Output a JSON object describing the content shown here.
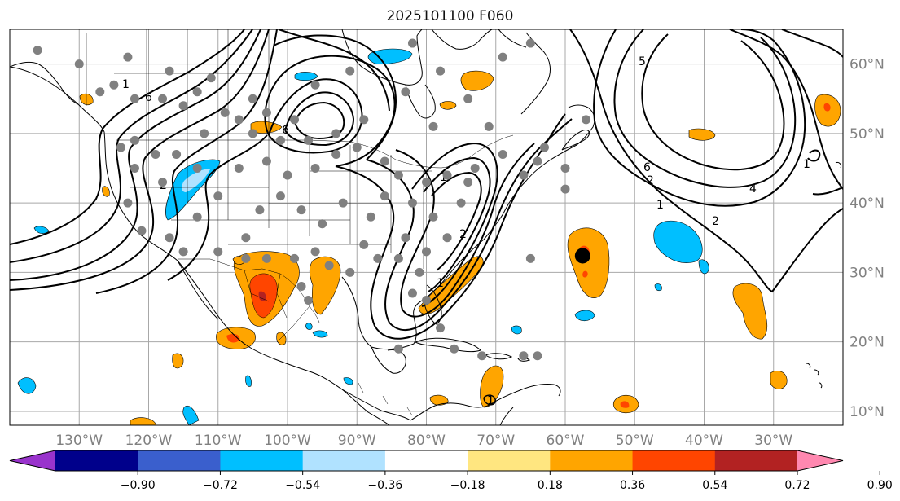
{
  "title": "2025101100 F060",
  "map": {
    "lon_range": [
      -140,
      -20
    ],
    "lat_range": [
      8,
      65
    ],
    "lon_ticks": [
      {
        "value": -130,
        "label": "130°W"
      },
      {
        "value": -120,
        "label": "120°W"
      },
      {
        "value": -110,
        "label": "110°W"
      },
      {
        "value": -100,
        "label": "100°W"
      },
      {
        "value": -90,
        "label": "90°W"
      },
      {
        "value": -80,
        "label": "80°W"
      },
      {
        "value": -70,
        "label": "70°W"
      },
      {
        "value": -60,
        "label": "60°W"
      },
      {
        "value": -50,
        "label": "50°W"
      },
      {
        "value": -40,
        "label": "40°W"
      },
      {
        "value": -30,
        "label": "30°W"
      }
    ],
    "lat_ticks": [
      {
        "value": 10,
        "label": "10°N"
      },
      {
        "value": 20,
        "label": "20°N"
      },
      {
        "value": 30,
        "label": "30°N"
      },
      {
        "value": 40,
        "label": "40°N"
      },
      {
        "value": 50,
        "label": "50°N"
      },
      {
        "value": 60,
        "label": "60°N"
      }
    ],
    "grid": true,
    "contour_labels": [
      "1",
      "6",
      "6",
      "1",
      "2",
      "1",
      "2",
      "5",
      "6",
      "1",
      "2",
      "4",
      "2",
      "1",
      "1"
    ],
    "station_points_gray": [
      [
        -123,
        61
      ],
      [
        -130,
        60
      ],
      [
        -136,
        62
      ],
      [
        -127,
        56
      ],
      [
        -125,
        57
      ],
      [
        -122,
        55
      ],
      [
        -118,
        55
      ],
      [
        -115,
        54
      ],
      [
        -117,
        59
      ],
      [
        -111,
        58
      ],
      [
        -113,
        56
      ],
      [
        -109,
        53
      ],
      [
        -105,
        55
      ],
      [
        -103,
        53
      ],
      [
        -99,
        52
      ],
      [
        -96,
        57
      ],
      [
        -93,
        50
      ],
      [
        -97,
        49
      ],
      [
        -101,
        49
      ],
      [
        -105,
        50
      ],
      [
        -107,
        52
      ],
      [
        -112,
        50
      ],
      [
        -116,
        47
      ],
      [
        -119,
        47
      ],
      [
        -122,
        49
      ],
      [
        -124,
        48
      ],
      [
        -122,
        45
      ],
      [
        -118,
        43
      ],
      [
        -113,
        45
      ],
      [
        -110,
        41
      ],
      [
        -107,
        45
      ],
      [
        -103,
        46
      ],
      [
        -100,
        44
      ],
      [
        -96,
        45
      ],
      [
        -93,
        47
      ],
      [
        -90,
        48
      ],
      [
        -86,
        46
      ],
      [
        -84,
        44
      ],
      [
        -80,
        43
      ],
      [
        -77,
        44
      ],
      [
        -73,
        45
      ],
      [
        -69,
        47
      ],
      [
        -66,
        44
      ],
      [
        -64,
        46
      ],
      [
        -60,
        45
      ],
      [
        -71,
        51
      ],
      [
        -79,
        51
      ],
      [
        -89,
        52
      ],
      [
        -83,
        56
      ],
      [
        -78,
        59
      ],
      [
        -69,
        61
      ],
      [
        -65,
        63
      ],
      [
        -74,
        55
      ],
      [
        -91,
        59
      ],
      [
        -82,
        63
      ],
      [
        -123,
        40
      ],
      [
        -121,
        36
      ],
      [
        -117,
        35
      ],
      [
        -113,
        38
      ],
      [
        -110,
        33
      ],
      [
        -106,
        35
      ],
      [
        -104,
        39
      ],
      [
        -101,
        41
      ],
      [
        -98,
        39
      ],
      [
        -95,
        37
      ],
      [
        -92,
        40
      ],
      [
        -88,
        38
      ],
      [
        -86,
        41
      ],
      [
        -82,
        40
      ],
      [
        -79,
        38
      ],
      [
        -75,
        40
      ],
      [
        -74,
        43
      ],
      [
        -96,
        33
      ],
      [
        -99,
        32
      ],
      [
        -103,
        32
      ],
      [
        -106,
        32
      ],
      [
        -91,
        30
      ],
      [
        -87,
        32
      ],
      [
        -84,
        32
      ],
      [
        -81,
        30
      ],
      [
        -82,
        27
      ],
      [
        -80,
        26
      ],
      [
        -98,
        28
      ],
      [
        -97,
        26
      ],
      [
        -89,
        34
      ],
      [
        -83,
        35
      ],
      [
        -80,
        33
      ],
      [
        -77,
        35
      ],
      [
        -60,
        42
      ],
      [
        -63,
        48
      ],
      [
        -57,
        52
      ],
      [
        -65,
        32
      ],
      [
        -76,
        19
      ],
      [
        -72,
        18
      ],
      [
        -64,
        18
      ],
      [
        -66,
        18
      ],
      [
        -84,
        19
      ],
      [
        -78,
        22
      ],
      [
        -115,
        33
      ],
      [
        -94,
        31
      ]
    ],
    "marker_black": [
      -57.5,
      32.4
    ]
  },
  "colorbar": {
    "colors": [
      "#9933cc",
      "#00008b",
      "#3a5fcd",
      "#00bfff",
      "#b0e2ff",
      "#ffffff",
      "#ffe680",
      "#ffa500",
      "#ff4500",
      "#b22222",
      "#ff88b0"
    ],
    "tick_labels": [
      "−0.90",
      "−0.72",
      "−0.54",
      "−0.36",
      "−0.18",
      "0.18",
      "0.36",
      "0.54",
      "0.72",
      "0.90"
    ],
    "extend": "both"
  }
}
